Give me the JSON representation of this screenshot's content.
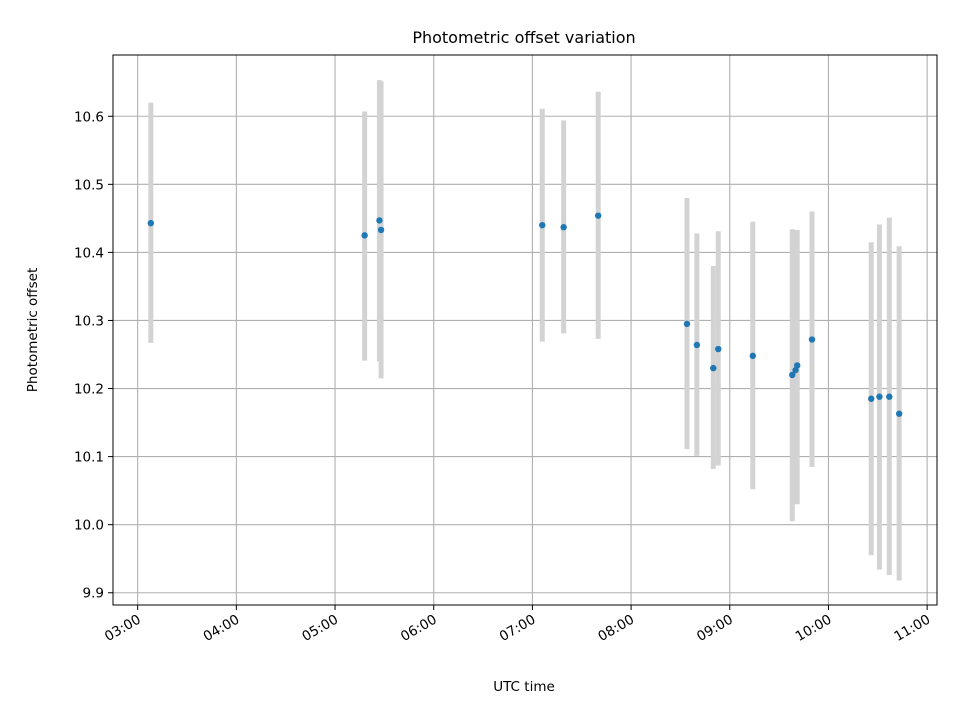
{
  "chart_data": {
    "type": "scatter",
    "title": "Photometric offset variation",
    "xlabel": "UTC time",
    "ylabel": "Photometric offset",
    "grid": true,
    "xlim": [
      "02:45",
      "11:06"
    ],
    "ylim": [
      9.882,
      10.69
    ],
    "x_ticks": [
      "03:00",
      "04:00",
      "05:00",
      "06:00",
      "07:00",
      "08:00",
      "09:00",
      "10:00",
      "11:00"
    ],
    "y_ticks": [
      "9.9",
      "10.0",
      "10.1",
      "10.2",
      "10.3",
      "10.4",
      "10.5",
      "10.6"
    ],
    "colors": {
      "marker": "#1f77b4",
      "errorbar": "#d3d3d3",
      "grid": "#b0b0b0"
    },
    "series": [
      {
        "points": [
          {
            "t": "03:08",
            "y": 10.443,
            "lo": 10.267,
            "hi": 10.62
          },
          {
            "t": "05:18",
            "y": 10.425,
            "lo": 10.241,
            "hi": 10.607
          },
          {
            "t": "05:27",
            "y": 10.447,
            "lo": 10.24,
            "hi": 10.653
          },
          {
            "t": "05:28",
            "y": 10.433,
            "lo": 10.215,
            "hi": 10.651
          },
          {
            "t": "07:06",
            "y": 10.44,
            "lo": 10.269,
            "hi": 10.611
          },
          {
            "t": "07:19",
            "y": 10.437,
            "lo": 10.281,
            "hi": 10.594
          },
          {
            "t": "07:40",
            "y": 10.454,
            "lo": 10.273,
            "hi": 10.636
          },
          {
            "t": "08:34",
            "y": 10.295,
            "lo": 10.111,
            "hi": 10.48
          },
          {
            "t": "08:40",
            "y": 10.264,
            "lo": 10.101,
            "hi": 10.428
          },
          {
            "t": "08:50",
            "y": 10.23,
            "lo": 10.082,
            "hi": 10.38
          },
          {
            "t": "08:53",
            "y": 10.258,
            "lo": 10.087,
            "hi": 10.431
          },
          {
            "t": "09:14",
            "y": 10.248,
            "lo": 10.052,
            "hi": 10.445
          },
          {
            "t": "09:38",
            "y": 10.22,
            "lo": 10.005,
            "hi": 10.434
          },
          {
            "t": "09:40",
            "y": 10.227,
            "lo": 10.031,
            "hi": 10.433
          },
          {
            "t": "09:41",
            "y": 10.234,
            "lo": 10.03,
            "hi": 10.433
          },
          {
            "t": "09:50",
            "y": 10.272,
            "lo": 10.085,
            "hi": 10.46
          },
          {
            "t": "10:26",
            "y": 10.185,
            "lo": 9.955,
            "hi": 10.415
          },
          {
            "t": "10:31",
            "y": 10.188,
            "lo": 9.934,
            "hi": 10.441
          },
          {
            "t": "10:37",
            "y": 10.188,
            "lo": 9.926,
            "hi": 10.451
          },
          {
            "t": "10:43",
            "y": 10.163,
            "lo": 9.918,
            "hi": 10.409
          }
        ]
      }
    ]
  }
}
